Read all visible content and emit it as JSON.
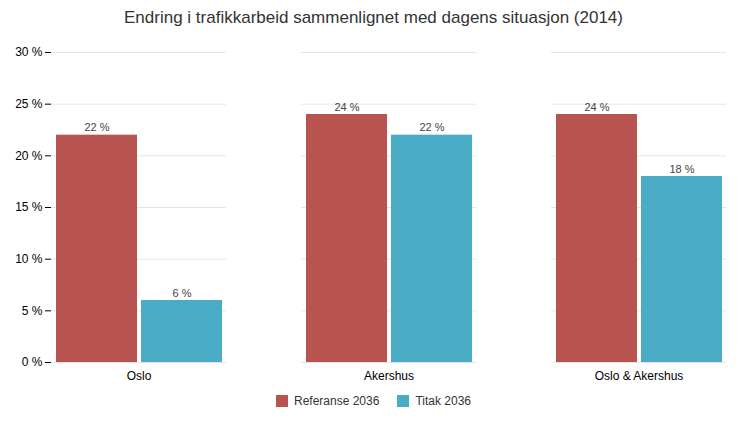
{
  "chart_data": {
    "type": "bar",
    "title": "Endring i trafikkarbeid sammenlignet med dagens situasjon (2014)",
    "categories": [
      "Oslo",
      "Akershus",
      "Oslo & Akershus"
    ],
    "series": [
      {
        "name": "Referanse 2036",
        "color": "#b85450",
        "values": [
          22,
          24,
          24
        ],
        "value_labels": [
          "22 %",
          "24 %",
          "24 %"
        ]
      },
      {
        "name": "Titak 2036",
        "color": "#4bacc6",
        "values": [
          6,
          22,
          18
        ],
        "value_labels": [
          "6 %",
          "22 %",
          "18 %"
        ]
      }
    ],
    "ylim": [
      0,
      30
    ],
    "yticks": [
      {
        "value": 0,
        "label": "0 %"
      },
      {
        "value": 5,
        "label": "5 %"
      },
      {
        "value": 10,
        "label": "10 %"
      },
      {
        "value": 15,
        "label": "15 %"
      },
      {
        "value": 20,
        "label": "20 %"
      },
      {
        "value": 25,
        "label": "25 %"
      },
      {
        "value": 30,
        "label": "30 %"
      }
    ],
    "grid": true,
    "data_labels": true,
    "legend": "bottom"
  }
}
